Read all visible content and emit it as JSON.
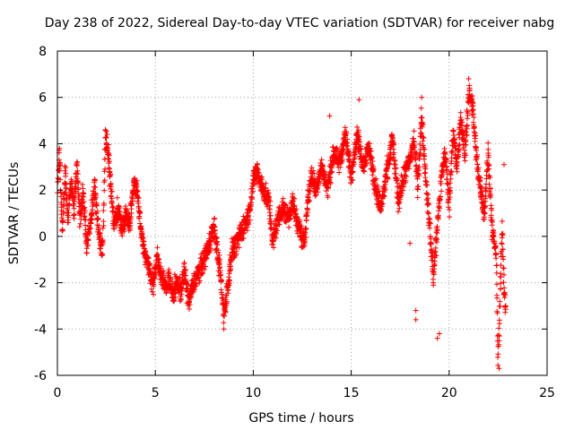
{
  "chart_data": {
    "type": "scatter",
    "title": "Day 238 of 2022, Sidereal Day-to-day VTEC variation (SDTVAR) for receiver nabg",
    "xlabel": "GPS time / hours",
    "ylabel": "SDTVAR / TECUs",
    "xlim": [
      0,
      25
    ],
    "ylim": [
      -6,
      8
    ],
    "x_ticks": [
      "0",
      "5",
      "10",
      "15",
      "20",
      "25"
    ],
    "y_ticks": [
      "-6",
      "-4",
      "-2",
      "0",
      "2",
      "4",
      "6",
      "8"
    ],
    "x_tick_values": [
      0,
      5,
      10,
      15,
      20,
      25
    ],
    "y_tick_values": [
      -6,
      -4,
      -2,
      0,
      2,
      4,
      6,
      8
    ],
    "grid": true,
    "marker": "+",
    "series": [
      {
        "name": "nabg",
        "color": "#ff0000",
        "anchors": [
          [
            0.0,
            1.8
          ],
          [
            0.1,
            3.7
          ],
          [
            0.25,
            0.2
          ],
          [
            0.4,
            2.7
          ],
          [
            0.55,
            0.8
          ],
          [
            0.7,
            2.4
          ],
          [
            0.85,
            1.1
          ],
          [
            1.0,
            3.2
          ],
          [
            1.15,
            0.5
          ],
          [
            1.3,
            2.0
          ],
          [
            1.5,
            -0.5
          ],
          [
            1.7,
            0.8
          ],
          [
            1.9,
            2.3
          ],
          [
            2.1,
            0.2
          ],
          [
            2.3,
            -0.8
          ],
          [
            2.45,
            4.3
          ],
          [
            2.55,
            3.8
          ],
          [
            2.7,
            2.5
          ],
          [
            2.9,
            0.5
          ],
          [
            3.1,
            1.2
          ],
          [
            3.3,
            0.3
          ],
          [
            3.5,
            1.0
          ],
          [
            3.7,
            0.5
          ],
          [
            3.9,
            2.4
          ],
          [
            4.1,
            1.8
          ],
          [
            4.3,
            0.0
          ],
          [
            4.5,
            -0.8
          ],
          [
            4.7,
            -1.5
          ],
          [
            4.9,
            -2.0
          ],
          [
            5.1,
            -0.9
          ],
          [
            5.3,
            -1.7
          ],
          [
            5.5,
            -2.2
          ],
          [
            5.7,
            -1.8
          ],
          [
            5.9,
            -2.6
          ],
          [
            6.1,
            -1.9
          ],
          [
            6.3,
            -2.4
          ],
          [
            6.5,
            -1.5
          ],
          [
            6.7,
            -2.9
          ],
          [
            6.9,
            -2.2
          ],
          [
            7.1,
            -1.7
          ],
          [
            7.4,
            -1.2
          ],
          [
            7.7,
            -0.4
          ],
          [
            8.0,
            0.4
          ],
          [
            8.3,
            -1.5
          ],
          [
            8.5,
            -3.4
          ],
          [
            8.7,
            -2.2
          ],
          [
            8.9,
            -0.6
          ],
          [
            9.2,
            -0.2
          ],
          [
            9.5,
            0.4
          ],
          [
            9.8,
            1.0
          ],
          [
            10.0,
            2.4
          ],
          [
            10.2,
            2.8
          ],
          [
            10.5,
            2.0
          ],
          [
            10.8,
            1.5
          ],
          [
            11.0,
            -0.3
          ],
          [
            11.2,
            0.6
          ],
          [
            11.5,
            1.2
          ],
          [
            11.8,
            0.8
          ],
          [
            12.0,
            1.5
          ],
          [
            12.3,
            0.4
          ],
          [
            12.6,
            -0.2
          ],
          [
            12.8,
            1.6
          ],
          [
            13.0,
            2.6
          ],
          [
            13.2,
            2.1
          ],
          [
            13.5,
            3.0
          ],
          [
            13.8,
            2.0
          ],
          [
            14.1,
            3.6
          ],
          [
            14.4,
            3.1
          ],
          [
            14.7,
            4.4
          ],
          [
            15.0,
            2.6
          ],
          [
            15.3,
            4.4
          ],
          [
            15.6,
            3.1
          ],
          [
            15.9,
            3.9
          ],
          [
            16.2,
            2.3
          ],
          [
            16.5,
            1.2
          ],
          [
            16.8,
            2.6
          ],
          [
            17.1,
            4.2
          ],
          [
            17.4,
            1.5
          ],
          [
            17.7,
            2.6
          ],
          [
            18.0,
            3.3
          ],
          [
            18.2,
            4.2
          ],
          [
            18.4,
            2.1
          ],
          [
            18.6,
            5.2
          ],
          [
            18.8,
            2.6
          ],
          [
            19.0,
            0.5
          ],
          [
            19.2,
            -1.8
          ],
          [
            19.4,
            0.4
          ],
          [
            19.6,
            2.6
          ],
          [
            19.8,
            3.6
          ],
          [
            20.0,
            1.3
          ],
          [
            20.2,
            4.6
          ],
          [
            20.4,
            2.9
          ],
          [
            20.6,
            5.1
          ],
          [
            20.8,
            3.5
          ],
          [
            21.0,
            6.2
          ],
          [
            21.2,
            5.6
          ],
          [
            21.4,
            3.3
          ],
          [
            21.6,
            2.1
          ],
          [
            21.8,
            1.0
          ],
          [
            22.0,
            3.6
          ],
          [
            22.2,
            0.2
          ],
          [
            22.4,
            -0.8
          ],
          [
            22.5,
            -5.3
          ],
          [
            22.6,
            -2.6
          ],
          [
            22.7,
            0.3
          ],
          [
            22.8,
            -2.2
          ],
          [
            22.9,
            -3.2
          ]
        ],
        "outliers": [
          [
            8.5,
            -4.0
          ],
          [
            18.3,
            -3.6
          ],
          [
            18.3,
            -3.2
          ],
          [
            19.4,
            -4.4
          ],
          [
            19.5,
            -4.2
          ],
          [
            18.0,
            -0.3
          ],
          [
            15.4,
            5.9
          ],
          [
            18.6,
            6.0
          ],
          [
            21.0,
            6.8
          ],
          [
            22.55,
            -5.7
          ],
          [
            22.8,
            3.1
          ],
          [
            2.45,
            4.6
          ],
          [
            10.1,
            3.0
          ],
          [
            13.9,
            5.2
          ]
        ]
      }
    ]
  }
}
